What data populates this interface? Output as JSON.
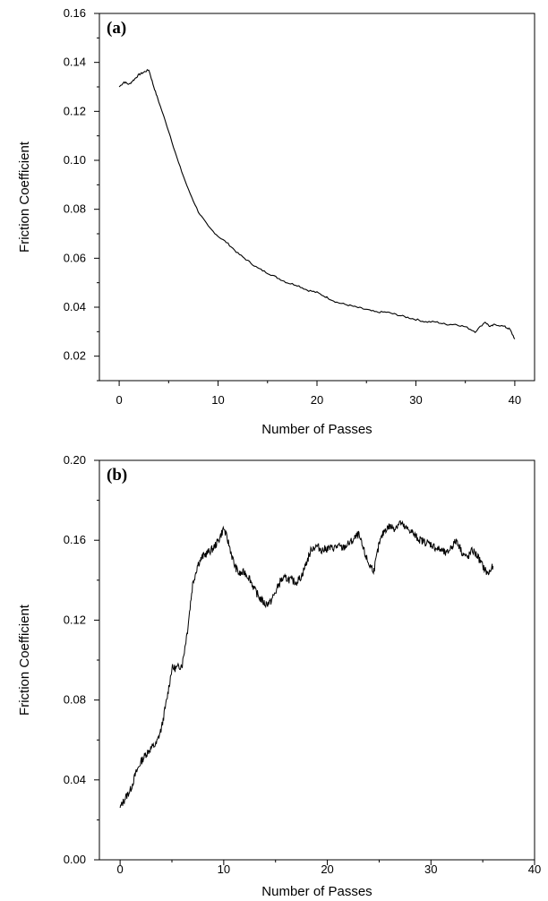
{
  "chart_data": [
    {
      "type": "line",
      "panel_label": "(a)",
      "xlabel": "Number of Passes",
      "ylabel": "Friction Coefficient",
      "xlim": [
        -2,
        42
      ],
      "ylim": [
        0.01,
        0.16
      ],
      "xticks": [
        0,
        10,
        20,
        30,
        40
      ],
      "yticks": [
        0.02,
        0.04,
        0.06,
        0.08,
        0.1,
        0.12,
        0.14,
        0.16
      ],
      "ytick_labels": [
        "0.02",
        "0.04",
        "0.06",
        "0.08",
        "0.10",
        "0.12",
        "0.14",
        "0.16"
      ],
      "series": [
        {
          "x": [
            0,
            0.5,
            1,
            1.5,
            2,
            2.5,
            3,
            3.5,
            4,
            5,
            6,
            7,
            8,
            9,
            10,
            11,
            12,
            13,
            14,
            15,
            16,
            17,
            18,
            19,
            20,
            21,
            22,
            23,
            24,
            25,
            26,
            27,
            28,
            29,
            30,
            31,
            32,
            33,
            34,
            35,
            36,
            37,
            37.5,
            38,
            39,
            39.5,
            40
          ],
          "y": [
            0.13,
            0.132,
            0.131,
            0.133,
            0.135,
            0.136,
            0.137,
            0.13,
            0.124,
            0.112,
            0.099,
            0.088,
            0.079,
            0.073,
            0.069,
            0.066,
            0.062,
            0.059,
            0.056,
            0.054,
            0.052,
            0.05,
            0.049,
            0.047,
            0.046,
            0.044,
            0.042,
            0.041,
            0.04,
            0.039,
            0.038,
            0.038,
            0.037,
            0.036,
            0.035,
            0.034,
            0.034,
            0.033,
            0.033,
            0.032,
            0.03,
            0.034,
            0.032,
            0.033,
            0.032,
            0.031,
            0.027
          ]
        }
      ]
    },
    {
      "type": "line",
      "panel_label": "(b)",
      "xlabel": "Number of Passes",
      "ylabel": "Friction Coefficient",
      "xlim": [
        -2,
        40
      ],
      "ylim": [
        0.0,
        0.2
      ],
      "xticks": [
        0,
        10,
        20,
        30,
        40
      ],
      "yticks": [
        0.0,
        0.04,
        0.08,
        0.12,
        0.16,
        0.2
      ],
      "ytick_labels": [
        "0.00",
        "0.04",
        "0.08",
        "0.12",
        "0.16",
        "0.20"
      ],
      "series": [
        {
          "x": [
            0,
            0.5,
            1,
            1.5,
            2,
            2.5,
            3,
            3.5,
            4,
            4.5,
            5,
            5.5,
            6,
            6.5,
            7,
            7.5,
            8,
            8.5,
            9,
            9.5,
            10,
            10.5,
            11,
            11.5,
            12,
            12.5,
            13,
            13.5,
            14,
            14.5,
            15,
            15.5,
            16,
            16.5,
            17,
            17.5,
            18,
            18.5,
            19,
            19.5,
            20,
            20.5,
            21,
            21.5,
            22,
            22.5,
            23,
            23.5,
            24,
            24.5,
            25,
            25.5,
            26,
            26.5,
            27,
            27.5,
            28,
            28.5,
            29,
            29.5,
            30,
            30.5,
            31,
            31.5,
            32,
            32.5,
            33,
            33.5,
            34,
            34.5,
            35,
            35.5,
            36
          ],
          "y": [
            0.026,
            0.031,
            0.035,
            0.043,
            0.049,
            0.053,
            0.056,
            0.058,
            0.066,
            0.08,
            0.096,
            0.096,
            0.098,
            0.115,
            0.138,
            0.148,
            0.152,
            0.154,
            0.156,
            0.16,
            0.166,
            0.158,
            0.148,
            0.143,
            0.144,
            0.141,
            0.135,
            0.131,
            0.128,
            0.129,
            0.134,
            0.14,
            0.141,
            0.14,
            0.139,
            0.142,
            0.149,
            0.156,
            0.157,
            0.155,
            0.156,
            0.156,
            0.157,
            0.156,
            0.158,
            0.16,
            0.163,
            0.155,
            0.148,
            0.145,
            0.158,
            0.165,
            0.167,
            0.166,
            0.169,
            0.166,
            0.165,
            0.162,
            0.16,
            0.159,
            0.158,
            0.156,
            0.155,
            0.153,
            0.157,
            0.16,
            0.154,
            0.151,
            0.155,
            0.152,
            0.147,
            0.143,
            0.147
          ]
        }
      ]
    }
  ]
}
